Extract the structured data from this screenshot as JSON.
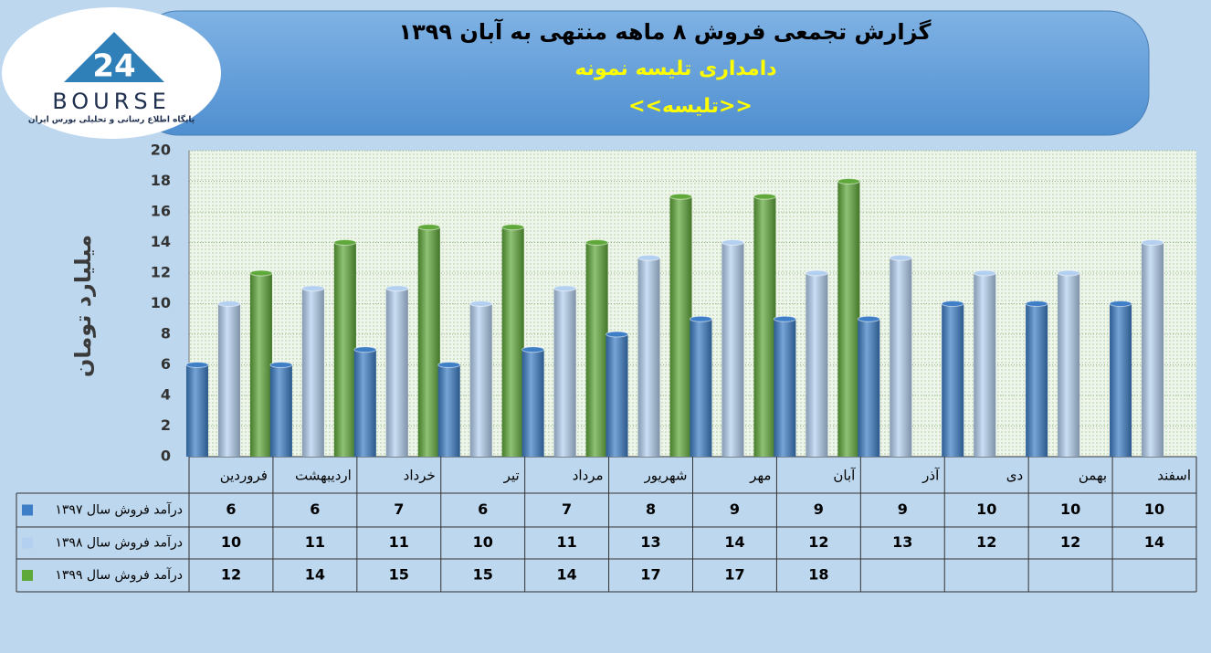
{
  "logo": {
    "number": "24",
    "name": "BOURSE",
    "tagline": "پایگاه اطلاع رسانی و تحلیلی بورس ایران"
  },
  "chart_data": {
    "type": "bar",
    "title": "گزارش تجمعی فروش ۸ ماهه منتهی به آبان ۱۳۹۹",
    "subtitle": "دامداری تلیسه نمونه",
    "subtitle2": "<<تلیسه>>",
    "y_label": "میلیارد تومان",
    "categories": [
      "فروردین",
      "اردیبهشت",
      "خرداد",
      "تیر",
      "مرداد",
      "شهریور",
      "مهر",
      "آبان",
      "آذر",
      "دی",
      "بهمن",
      "اسفند"
    ],
    "series": [
      {
        "name": "درآمد فروش سال ۱۳۹۷",
        "color": "#3e7ec6",
        "values": [
          6,
          6,
          7,
          6,
          7,
          8,
          9,
          9,
          9,
          10,
          10,
          10
        ]
      },
      {
        "name": "درآمد فروش سال ۱۳۹۸",
        "color": "#b4d0f0",
        "values": [
          10,
          11,
          11,
          10,
          11,
          13,
          14,
          12,
          13,
          12,
          12,
          14
        ]
      },
      {
        "name": "درآمد فروش سال ۱۳۹۹",
        "color": "#5fa83a",
        "values": [
          12,
          14,
          15,
          15,
          14,
          17,
          17,
          18,
          null,
          null,
          null,
          null
        ]
      }
    ],
    "ylim": [
      0,
      20
    ],
    "yticks": [
      0,
      2,
      4,
      6,
      8,
      10,
      12,
      14,
      16,
      18,
      20
    ],
    "grid": true
  }
}
